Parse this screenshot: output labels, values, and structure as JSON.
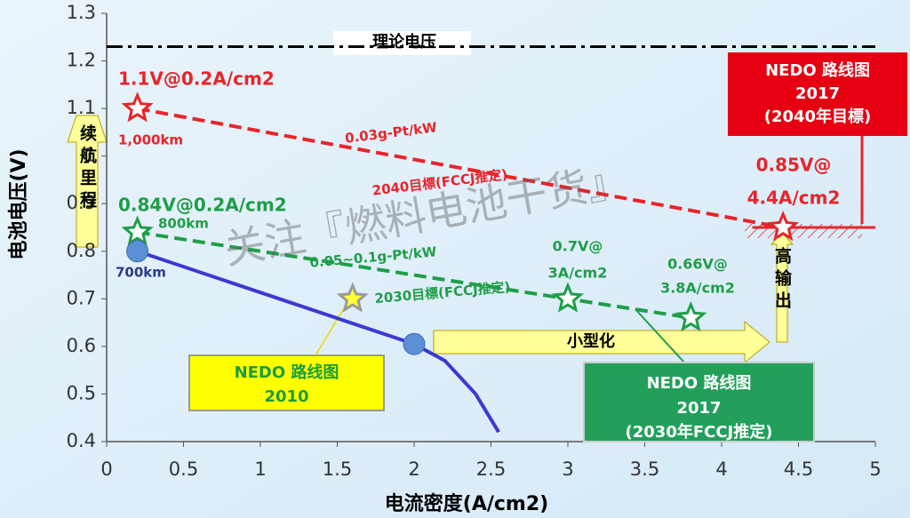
{
  "chart_data": {
    "type": "line",
    "xlabel": "电流密度(A/cm2)",
    "ylabel": "电池电压(V)",
    "xlim": [
      0,
      5
    ],
    "xticks": [
      0,
      0.5,
      1,
      1.5,
      2,
      2.5,
      3,
      3.5,
      4,
      4.5,
      5
    ],
    "ylim": [
      0.4,
      1.3
    ],
    "yticks": [
      0.4,
      0.5,
      0.6,
      0.7,
      0.8,
      0.9,
      1,
      1.1,
      1.2,
      1.3
    ],
    "grid": false,
    "series": [
      {
        "color": "#e8242b",
        "style": "dashed",
        "marker": "star",
        "x": [
          0.2,
          4.4
        ],
        "values": [
          1.1,
          0.85
        ]
      },
      {
        "color": "#1f9e48",
        "style": "dashed",
        "marker": "star",
        "x": [
          0.2,
          3,
          3.8
        ],
        "values": [
          0.84,
          0.7,
          0.66
        ]
      },
      {
        "color": "#3a3ad0",
        "style": "solid",
        "marker": "none",
        "x": [
          0.2,
          2,
          2.2,
          2.4,
          2.55
        ],
        "values": [
          0.8,
          0.605,
          0.57,
          0.5,
          0.42
        ]
      }
    ],
    "points": [
      {
        "color": "#5b8fd6",
        "marker": "circle",
        "x": [
          0.2,
          2
        ],
        "values": [
          0.8,
          0.605
        ]
      },
      {
        "color": "#ffff33",
        "marker": "star",
        "x": [
          1.6
        ],
        "values": [
          0.7
        ]
      }
    ],
    "reference_lines": [
      {
        "y": 1.23,
        "color": "#000000",
        "style": "dashdot"
      },
      {
        "y": 0.85,
        "color": "#e8242b",
        "style": "solid",
        "xlim": [
          4.2,
          5
        ]
      }
    ],
    "annotations": [
      "理论电压",
      "1.1V@0.2A/cm2",
      "1,000km",
      "0.03g-Pt/kW",
      "2040目標(FCCJ推定)",
      "0.85V@",
      "4.4A/cm2",
      "0.84V@0.2A/cm2",
      "800km",
      "700km",
      "0.05~0.1g-Pt/kW",
      "2030目標(FCCJ推定)",
      "0.7V@",
      "3A/cm2",
      "0.66V@",
      "3.8A/cm2",
      "小型化"
    ],
    "boxes": [
      {
        "lines": [
          "NEDO 路线图",
          "2017",
          "(2040年目標)"
        ]
      },
      {
        "lines": [
          "NEDO 路线图",
          "2010"
        ]
      },
      {
        "lines": [
          "NEDO 路线图",
          "2017",
          "(2030年FCCJ推定)"
        ]
      }
    ],
    "vertical_labels": [
      "续航里程",
      "高输出"
    ],
    "watermark": "关注『燃料电池干货』"
  }
}
